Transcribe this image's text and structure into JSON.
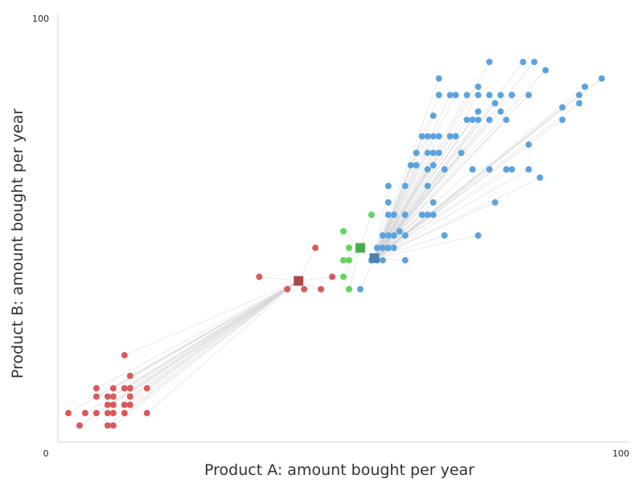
{
  "chart_data": {
    "type": "scatter",
    "xlabel": "Product A: amount bought per year",
    "ylabel": "Product B: amount bought per year",
    "xlim": [
      0,
      100
    ],
    "ylim": [
      0,
      100
    ],
    "x_ticks": [
      "0",
      "100"
    ],
    "y_ticks": [
      "100"
    ],
    "grid": false,
    "legend": "none",
    "centroid_links": true,
    "series": [
      {
        "color": "#d95a5a",
        "centroid": [
          42,
          39
        ],
        "points": [
          [
            1,
            7
          ],
          [
            3,
            4
          ],
          [
            4,
            7
          ],
          [
            6,
            13
          ],
          [
            6,
            11
          ],
          [
            6,
            7
          ],
          [
            8,
            11
          ],
          [
            8,
            9
          ],
          [
            8,
            7
          ],
          [
            8,
            4
          ],
          [
            9,
            13
          ],
          [
            9,
            11
          ],
          [
            9,
            9
          ],
          [
            9,
            7
          ],
          [
            9,
            4
          ],
          [
            11,
            21
          ],
          [
            11,
            13
          ],
          [
            11,
            9
          ],
          [
            11,
            7
          ],
          [
            12,
            16
          ],
          [
            12,
            13
          ],
          [
            12,
            11
          ],
          [
            12,
            9
          ],
          [
            15,
            13
          ],
          [
            15,
            7
          ],
          [
            35,
            40
          ],
          [
            40,
            37
          ],
          [
            43,
            37
          ],
          [
            45,
            47
          ],
          [
            46,
            37
          ],
          [
            48,
            40
          ]
        ]
      },
      {
        "color": "#5ed65e",
        "centroid": [
          53,
          47
        ],
        "points": [
          [
            50,
            51
          ],
          [
            50,
            44
          ],
          [
            50,
            40
          ],
          [
            51,
            47
          ],
          [
            51,
            44
          ],
          [
            51,
            37
          ],
          [
            55,
            55
          ]
        ]
      },
      {
        "color": "#5ba3e0",
        "centroid": [
          55.5,
          44.5
        ],
        "points": [
          [
            53,
            37
          ],
          [
            55,
            44
          ],
          [
            56,
            47
          ],
          [
            56,
            44
          ],
          [
            57,
            50
          ],
          [
            57,
            47
          ],
          [
            57,
            44
          ],
          [
            58,
            62
          ],
          [
            58,
            58
          ],
          [
            58,
            55
          ],
          [
            58,
            50
          ],
          [
            58,
            47
          ],
          [
            59,
            55
          ],
          [
            59,
            50
          ],
          [
            59,
            47
          ],
          [
            60,
            51
          ],
          [
            61,
            62
          ],
          [
            61,
            55
          ],
          [
            61,
            50
          ],
          [
            61,
            44
          ],
          [
            62,
            67
          ],
          [
            63,
            70
          ],
          [
            63,
            67
          ],
          [
            64,
            74
          ],
          [
            64,
            55
          ],
          [
            65,
            74
          ],
          [
            65,
            70
          ],
          [
            65,
            66
          ],
          [
            65,
            62
          ],
          [
            65,
            55
          ],
          [
            66,
            79
          ],
          [
            66,
            74
          ],
          [
            66,
            70
          ],
          [
            66,
            67
          ],
          [
            66,
            58
          ],
          [
            66,
            55
          ],
          [
            67,
            88
          ],
          [
            67,
            84
          ],
          [
            67,
            74
          ],
          [
            67,
            70
          ],
          [
            68,
            66
          ],
          [
            68,
            50
          ],
          [
            69,
            84
          ],
          [
            69,
            74
          ],
          [
            70,
            84
          ],
          [
            70,
            74
          ],
          [
            71,
            70
          ],
          [
            72,
            84
          ],
          [
            72,
            78
          ],
          [
            73,
            78
          ],
          [
            73,
            66
          ],
          [
            74,
            86
          ],
          [
            74,
            84
          ],
          [
            74,
            80
          ],
          [
            74,
            78
          ],
          [
            74,
            50
          ],
          [
            76,
            92
          ],
          [
            76,
            84
          ],
          [
            76,
            78
          ],
          [
            76,
            66
          ],
          [
            77,
            58
          ],
          [
            77,
            82
          ],
          [
            78,
            84
          ],
          [
            78,
            80
          ],
          [
            79,
            78
          ],
          [
            79,
            66
          ],
          [
            80,
            84
          ],
          [
            80,
            66
          ],
          [
            82,
            92
          ],
          [
            83,
            84
          ],
          [
            83,
            66
          ],
          [
            83,
            72
          ],
          [
            84,
            92
          ],
          [
            85,
            64
          ],
          [
            86,
            90
          ],
          [
            89,
            78
          ],
          [
            89,
            81
          ],
          [
            92,
            84
          ],
          [
            92,
            82
          ],
          [
            93,
            86
          ],
          [
            96,
            88
          ]
        ]
      }
    ]
  }
}
